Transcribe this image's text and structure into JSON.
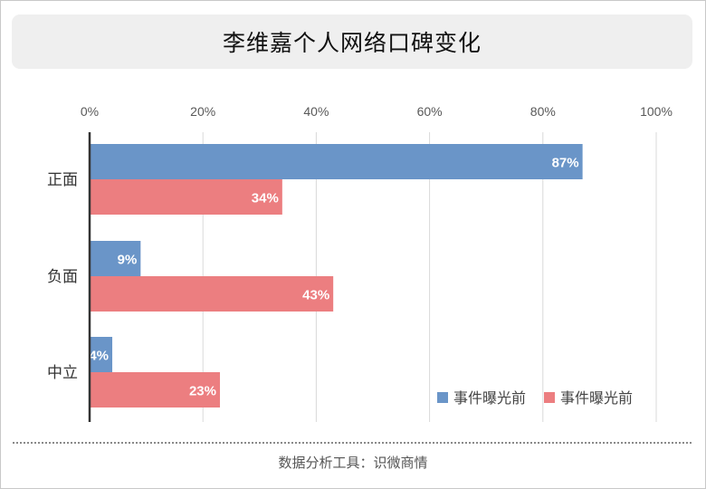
{
  "footer": {
    "source": "数据分析工具：识微商情"
  },
  "chart_data": {
    "type": "bar",
    "orientation": "horizontal",
    "title": "李维嘉个人网络口碑变化",
    "categories": [
      "正面",
      "负面",
      "中立"
    ],
    "series": [
      {
        "name": "事件曝光前",
        "color": "#6a95c8",
        "values": [
          87,
          9,
          4
        ]
      },
      {
        "name": "事件曝光前",
        "color": "#ec7e80",
        "values": [
          34,
          43,
          23
        ]
      }
    ],
    "value_labels": [
      [
        "87%",
        "9%",
        "4%"
      ],
      [
        "34%",
        "43%",
        "23%"
      ]
    ],
    "x_ticks": [
      "0%",
      "20%",
      "40%",
      "60%",
      "80%",
      "100%"
    ],
    "xlim": [
      0,
      100
    ],
    "axis_position": "top",
    "grid": true,
    "legend_position": "bottom-right"
  }
}
